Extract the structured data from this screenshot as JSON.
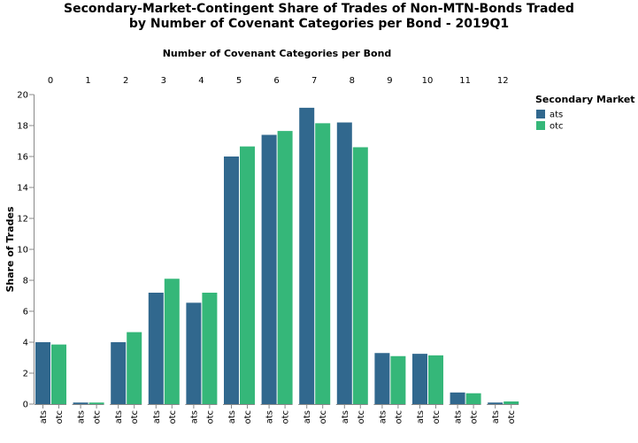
{
  "chart_data": {
    "type": "bar",
    "title_lines": [
      "Secondary-Market-Contingent Share of Trades of Non-MTN-Bonds Traded",
      "by Number of Covenant Categories per Bond - 2019Q1"
    ],
    "column_title": "Number of Covenant Categories per Bond",
    "ylabel": "Share of Trades",
    "ylim": [
      0,
      20
    ],
    "yticks": [
      0,
      2,
      4,
      6,
      8,
      10,
      12,
      14,
      16,
      18,
      20
    ],
    "categories": [
      "0",
      "1",
      "2",
      "3",
      "4",
      "5",
      "6",
      "7",
      "8",
      "9",
      "10",
      "11",
      "12"
    ],
    "subcategories": [
      "ats",
      "otc"
    ],
    "series": [
      {
        "name": "ats",
        "color": "#31688e",
        "values": [
          4.0,
          0.1,
          4.0,
          7.2,
          6.55,
          16.0,
          17.4,
          19.15,
          18.2,
          3.3,
          3.25,
          0.75,
          0.1
        ]
      },
      {
        "name": "otc",
        "color": "#35b779",
        "values": [
          3.85,
          0.1,
          4.65,
          8.1,
          7.2,
          16.65,
          17.65,
          18.15,
          16.6,
          3.1,
          3.15,
          0.7,
          0.17
        ]
      }
    ],
    "legend": {
      "title": "Secondary Market",
      "position": "right"
    },
    "grid": false
  }
}
